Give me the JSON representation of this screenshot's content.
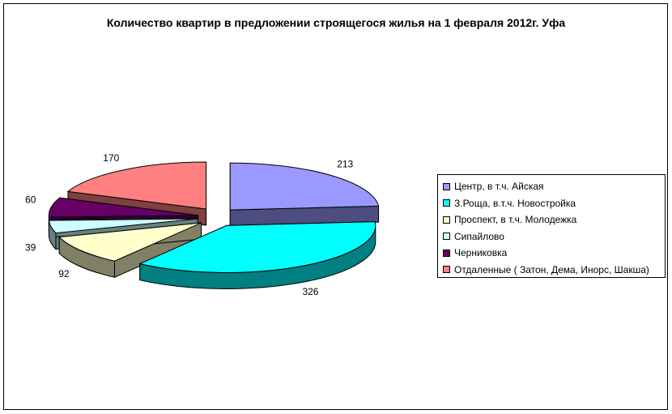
{
  "chart_data": {
    "type": "pie",
    "title": "Количество квартир в предложении строящегося жилья на 1 февраля 2012г. Уфа",
    "legend_position": "right",
    "three_d": true,
    "exploded": true,
    "series": [
      {
        "name": "Центр, в т.ч. Айская",
        "value": 213,
        "color": "#9999ff"
      },
      {
        "name": "З.Роща, в.т.ч. Новостройка",
        "value": 326,
        "color": "#00ffff"
      },
      {
        "name": "Проспект, в т.ч. Молодежка",
        "value": 92,
        "color": "#ffffcc"
      },
      {
        "name": "Сипайлово",
        "value": 39,
        "color": "#ccffff"
      },
      {
        "name": "Черниковка",
        "value": 60,
        "color": "#660066"
      },
      {
        "name": "Отдаленные ( Затон, Дема, Инорс, Шакша)",
        "value": 170,
        "color": "#ff8080"
      }
    ]
  }
}
